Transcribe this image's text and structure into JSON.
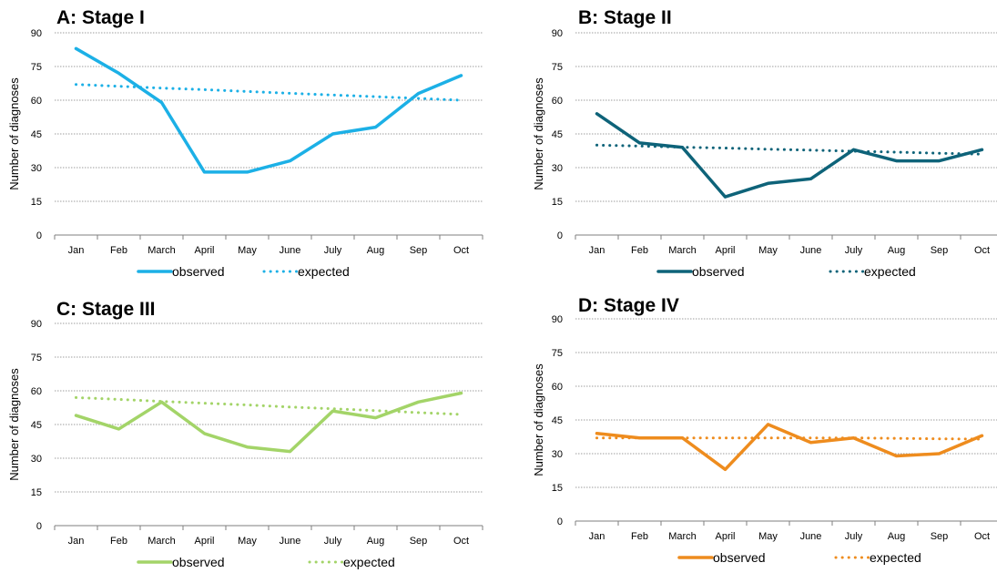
{
  "chart_data": [
    {
      "type": "line",
      "title": "A: Stage I",
      "ylabel": "Number of diagnoses",
      "ylim": [
        0,
        90
      ],
      "yticks": [
        "0",
        "15",
        "30",
        "45",
        "60",
        "75",
        "90"
      ],
      "categories": [
        "Jan",
        "Feb",
        "March",
        "April",
        "May",
        "June",
        "July",
        "Aug",
        "Sep",
        "Oct"
      ],
      "series": [
        {
          "name": "observed",
          "style": "solid",
          "color": "#1cb0e6",
          "values": [
            83,
            72,
            59,
            28,
            28,
            33,
            45,
            48,
            63,
            71
          ]
        },
        {
          "name": "expected",
          "style": "dotted",
          "color": "#1cb0e6",
          "values": [
            67,
            66.2,
            65.4,
            64.7,
            63.9,
            63.1,
            62.3,
            61.6,
            60.8,
            60
          ]
        }
      ],
      "grid": true,
      "legend": "bottom"
    },
    {
      "type": "line",
      "title": "B: Stage II",
      "ylabel": "Number of diagnoses",
      "ylim": [
        0,
        90
      ],
      "yticks": [
        "0",
        "15",
        "30",
        "45",
        "60",
        "75",
        "90"
      ],
      "categories": [
        "Jan",
        "Feb",
        "March",
        "April",
        "May",
        "June",
        "July",
        "Aug",
        "Sep",
        "Oct"
      ],
      "series": [
        {
          "name": "observed",
          "style": "solid",
          "color": "#0e6379",
          "values": [
            54,
            41,
            39,
            17,
            23,
            25,
            38,
            33,
            33,
            38
          ]
        },
        {
          "name": "expected",
          "style": "dotted",
          "color": "#0e6379",
          "values": [
            40,
            39.6,
            39.1,
            38.7,
            38.2,
            37.8,
            37.3,
            36.9,
            36.4,
            36
          ]
        }
      ],
      "grid": true,
      "legend": "bottom"
    },
    {
      "type": "line",
      "title": "C: Stage III",
      "ylabel": "Number of diagnoses",
      "ylim": [
        0,
        90
      ],
      "yticks": [
        "0",
        "15",
        "30",
        "45",
        "60",
        "75",
        "90"
      ],
      "categories": [
        "Jan",
        "Feb",
        "March",
        "April",
        "May",
        "June",
        "July",
        "Aug",
        "Sep",
        "Oct"
      ],
      "series": [
        {
          "name": "observed",
          "style": "solid",
          "color": "#a3d468",
          "values": [
            49,
            43,
            55,
            41,
            35,
            33,
            51,
            48,
            55,
            59
          ]
        },
        {
          "name": "expected",
          "style": "dotted",
          "color": "#a3d468",
          "values": [
            57,
            56.2,
            55.3,
            54.5,
            53.7,
            52.8,
            52,
            51.2,
            50.3,
            49.5
          ]
        }
      ],
      "grid": true,
      "legend": "bottom"
    },
    {
      "type": "line",
      "title": "D: Stage IV",
      "ylabel": "Number of diagnoses",
      "ylim": [
        0,
        90
      ],
      "yticks": [
        "0",
        "15",
        "30",
        "45",
        "60",
        "75",
        "90"
      ],
      "categories": [
        "Jan",
        "Feb",
        "March",
        "April",
        "May",
        "June",
        "July",
        "Aug",
        "Sep",
        "Oct"
      ],
      "series": [
        {
          "name": "observed",
          "style": "solid",
          "color": "#ee8c1e",
          "values": [
            39,
            37,
            37,
            23,
            43,
            35,
            37,
            29,
            30,
            38
          ]
        },
        {
          "name": "expected",
          "style": "dotted",
          "color": "#ee8c1e",
          "values": [
            37,
            37,
            37,
            37,
            37,
            37,
            37,
            36.8,
            36.6,
            36.5
          ]
        }
      ],
      "grid": true,
      "legend": "bottom"
    }
  ]
}
